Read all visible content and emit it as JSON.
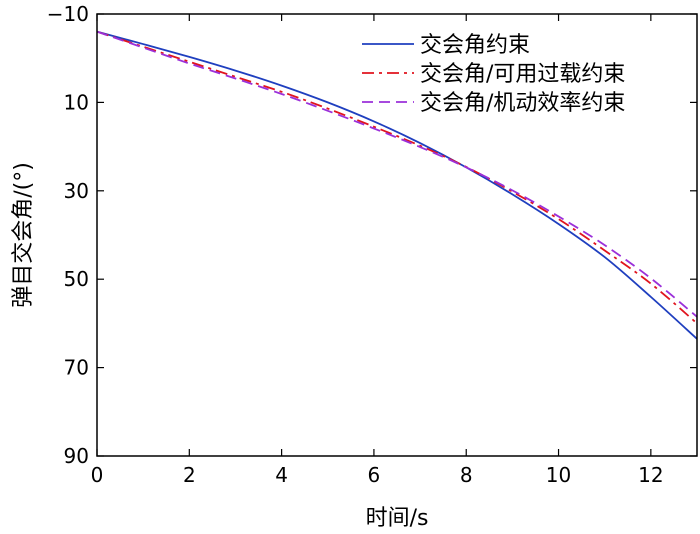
{
  "chart_data": {
    "type": "line",
    "xlabel": "时间/s",
    "ylabel": "弹目交会角/(°)",
    "xlim": [
      0,
      13
    ],
    "ylim": [
      -10,
      90
    ],
    "y_inverted": true,
    "grid": false,
    "legend_position": "top-right",
    "x_ticks": [
      "0",
      "2",
      "4",
      "6",
      "8",
      "10",
      "12"
    ],
    "y_ticks": [
      "−10",
      "10",
      "30",
      "50",
      "70",
      "90"
    ],
    "series": [
      {
        "name": "交会角约束",
        "color": "#1f3fbf",
        "dash": "solid",
        "x": [
          0,
          1,
          2,
          3,
          4,
          5,
          6,
          7,
          8,
          9,
          10,
          11,
          12,
          13
        ],
        "y": [
          -6,
          -3.2,
          -0.3,
          2.8,
          6.2,
          10.0,
          14.3,
          19.2,
          24.7,
          30.8,
          37.5,
          45.0,
          54.0,
          63.5
        ]
      },
      {
        "name": "交会角/可用过载约束",
        "color": "#e0141e",
        "dash": "dashdot",
        "x": [
          0,
          1,
          2,
          3,
          4,
          5,
          6,
          7,
          8,
          9,
          10,
          11,
          12,
          13
        ],
        "y": [
          -6,
          -2.6,
          0.8,
          4.2,
          7.6,
          11.4,
          15.5,
          19.8,
          24.6,
          30.2,
          36.4,
          43.5,
          51.0,
          60.0
        ]
      },
      {
        "name": "交会角/机动效率约束",
        "color": "#9b30d9",
        "dash": "dashed",
        "x": [
          0,
          1,
          2,
          3,
          4,
          5,
          6,
          7,
          8,
          9,
          10,
          11,
          12,
          13
        ],
        "y": [
          -6,
          -2.4,
          1.2,
          4.6,
          8.1,
          11.9,
          15.9,
          20.1,
          24.7,
          29.9,
          35.8,
          42.3,
          49.8,
          58.5
        ]
      }
    ]
  }
}
